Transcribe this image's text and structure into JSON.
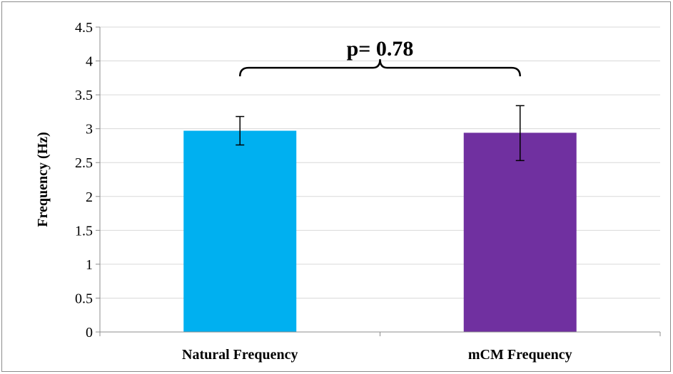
{
  "chart_data": {
    "type": "bar",
    "categories": [
      "Natural Frequency",
      "mCM Frequency"
    ],
    "values": [
      2.97,
      2.94
    ],
    "error_bars": [
      {
        "low": 2.76,
        "high": 3.18
      },
      {
        "low": 2.53,
        "high": 3.34
      }
    ],
    "bar_colors": [
      "#00b0f0",
      "#7030a0"
    ],
    "ylabel": "Frequency (Hz)",
    "xlabel": "",
    "ylim": [
      0,
      4.5
    ],
    "yticks": [
      0,
      0.5,
      1,
      1.5,
      2,
      2.5,
      3,
      3.5,
      4,
      4.5
    ],
    "ytick_labels": [
      "0",
      "0.5",
      "1",
      "1.5",
      "2",
      "2.5",
      "3",
      "3.5",
      "4",
      "4.5"
    ],
    "grid": true,
    "grid_color": "#d9d9d9",
    "annotation": {
      "text": "p= 0.78",
      "bracket_level": 3.9
    }
  }
}
